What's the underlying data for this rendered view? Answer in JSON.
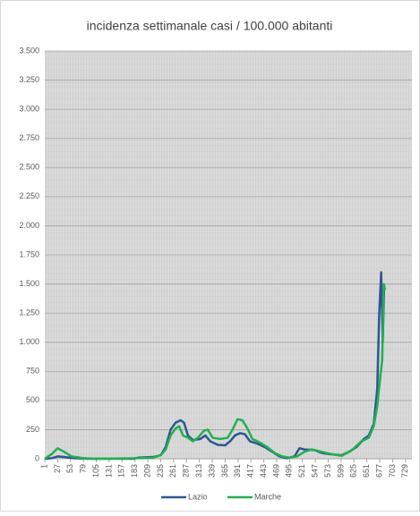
{
  "chart_data": {
    "type": "line",
    "title": "incidenza settimanale casi / 100.000 abitanti",
    "xlim": [
      1,
      742
    ],
    "xticks": [
      1,
      27,
      53,
      79,
      105,
      131,
      157,
      183,
      209,
      235,
      261,
      287,
      313,
      339,
      365,
      391,
      417,
      443,
      469,
      495,
      521,
      547,
      573,
      599,
      625,
      651,
      677,
      703,
      729
    ],
    "ylim": [
      0,
      3500
    ],
    "yticks": [
      0,
      250,
      500,
      750,
      {
        "value": 1000,
        "label": "1.000"
      },
      {
        "value": 1250,
        "label": "1.250"
      },
      {
        "value": 1500,
        "label": "1.500"
      },
      {
        "value": 1750,
        "label": "1.750"
      },
      {
        "value": 2000,
        "label": "2.000"
      },
      {
        "value": 2250,
        "label": "2.250"
      },
      {
        "value": 2500,
        "label": "2.500"
      },
      {
        "value": 2750,
        "label": "2.750"
      },
      {
        "value": 3000,
        "label": "3.000"
      },
      {
        "value": 3250,
        "label": "3.250"
      },
      {
        "value": 3500,
        "label": "3.500"
      }
    ],
    "grid": true,
    "legend": "bottom",
    "series": [
      {
        "name": "Lazio",
        "color": "#2e5597",
        "x": [
          1,
          15,
          27,
          40,
          60,
          80,
          100,
          180,
          190,
          220,
          235,
          245,
          255,
          265,
          275,
          282,
          290,
          300,
          315,
          325,
          335,
          350,
          365,
          375,
          385,
          395,
          405,
          415,
          430,
          445,
          460,
          475,
          490,
          505,
          515,
          525,
          545,
          560,
          575,
          600,
          615,
          630,
          645,
          655,
          665,
          672,
          676,
          680,
          683,
          686
        ],
        "values": [
          0,
          5,
          20,
          15,
          5,
          2,
          0,
          0,
          10,
          15,
          30,
          100,
          250,
          310,
          330,
          310,
          200,
          160,
          170,
          200,
          150,
          120,
          115,
          150,
          200,
          220,
          210,
          150,
          130,
          100,
          60,
          20,
          5,
          20,
          90,
          80,
          75,
          50,
          40,
          30,
          60,
          100,
          170,
          200,
          300,
          600,
          1250,
          1600,
          1000,
          1500
        ]
      },
      {
        "name": "Marche",
        "color": "#1db34c",
        "x": [
          1,
          15,
          27,
          40,
          55,
          80,
          100,
          190,
          220,
          235,
          245,
          255,
          265,
          272,
          280,
          290,
          300,
          310,
          322,
          330,
          340,
          355,
          370,
          380,
          390,
          400,
          410,
          420,
          435,
          450,
          465,
          480,
          495,
          510,
          525,
          540,
          560,
          580,
          600,
          620,
          640,
          655,
          665,
          672,
          678,
          682,
          685,
          688
        ],
        "values": [
          0,
          40,
          90,
          60,
          20,
          5,
          0,
          5,
          10,
          30,
          80,
          200,
          260,
          280,
          200,
          180,
          150,
          180,
          240,
          250,
          180,
          170,
          180,
          250,
          340,
          330,
          260,
          170,
          140,
          100,
          50,
          20,
          10,
          20,
          60,
          80,
          60,
          40,
          25,
          70,
          150,
          180,
          280,
          450,
          700,
          850,
          1500,
          1450
        ]
      }
    ]
  }
}
